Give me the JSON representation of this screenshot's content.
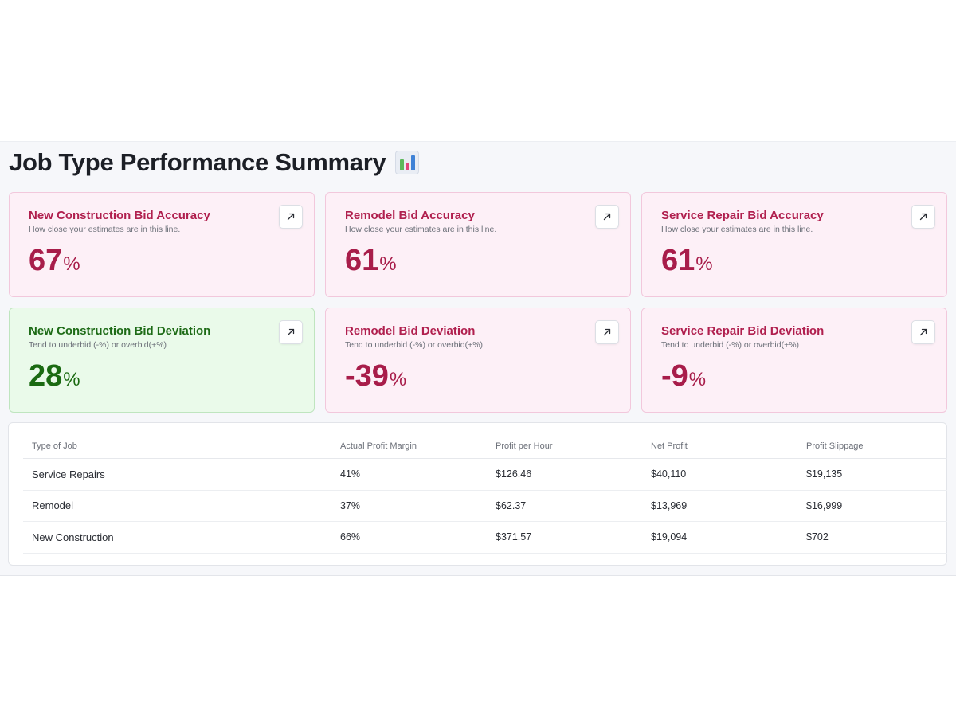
{
  "page": {
    "title": "Job Type Performance Summary",
    "title_icon": "bar-chart-emoji-icon"
  },
  "colors": {
    "accent_red": "#a81d4a",
    "accent_green": "#1b6a12",
    "card_red_bg": "#fdf0f7",
    "card_green_bg": "#eafaea"
  },
  "cards": [
    {
      "title": "New Construction Bid Accuracy",
      "subtitle": "How close your estimates are in this line.",
      "value": "67",
      "unit": "%",
      "tone": "red",
      "icon": "arrow-up-right-icon"
    },
    {
      "title": "Remodel Bid Accuracy",
      "subtitle": "How close your estimates are in this line.",
      "value": "61",
      "unit": "%",
      "tone": "red",
      "icon": "arrow-up-right-icon"
    },
    {
      "title": "Service Repair Bid Accuracy",
      "subtitle": "How close your estimates are in this line.",
      "value": "61",
      "unit": "%",
      "tone": "red",
      "icon": "arrow-up-right-icon"
    },
    {
      "title": "New Construction Bid Deviation",
      "subtitle": "Tend to underbid (-%) or overbid(+%)",
      "value": "28",
      "unit": "%",
      "tone": "green",
      "icon": "arrow-up-right-icon"
    },
    {
      "title": "Remodel Bid Deviation",
      "subtitle": "Tend to underbid (-%) or overbid(+%)",
      "value": "-39",
      "unit": "%",
      "tone": "red",
      "icon": "arrow-up-right-icon"
    },
    {
      "title": "Service Repair Bid Deviation",
      "subtitle": "Tend to underbid (-%) or overbid(+%)",
      "value": "-9",
      "unit": "%",
      "tone": "red",
      "icon": "arrow-up-right-icon"
    }
  ],
  "table": {
    "columns": [
      "Type of Job",
      "Actual Profit Margin",
      "Profit per Hour",
      "Net Profit",
      "Profit Slippage"
    ],
    "rows": [
      [
        "Service Repairs",
        "41%",
        "$126.46",
        "$40,110",
        "$19,135"
      ],
      [
        "Remodel",
        "37%",
        "$62.37",
        "$13,969",
        "$16,999"
      ],
      [
        "New Construction",
        "66%",
        "$371.57",
        "$19,094",
        "$702"
      ]
    ]
  }
}
